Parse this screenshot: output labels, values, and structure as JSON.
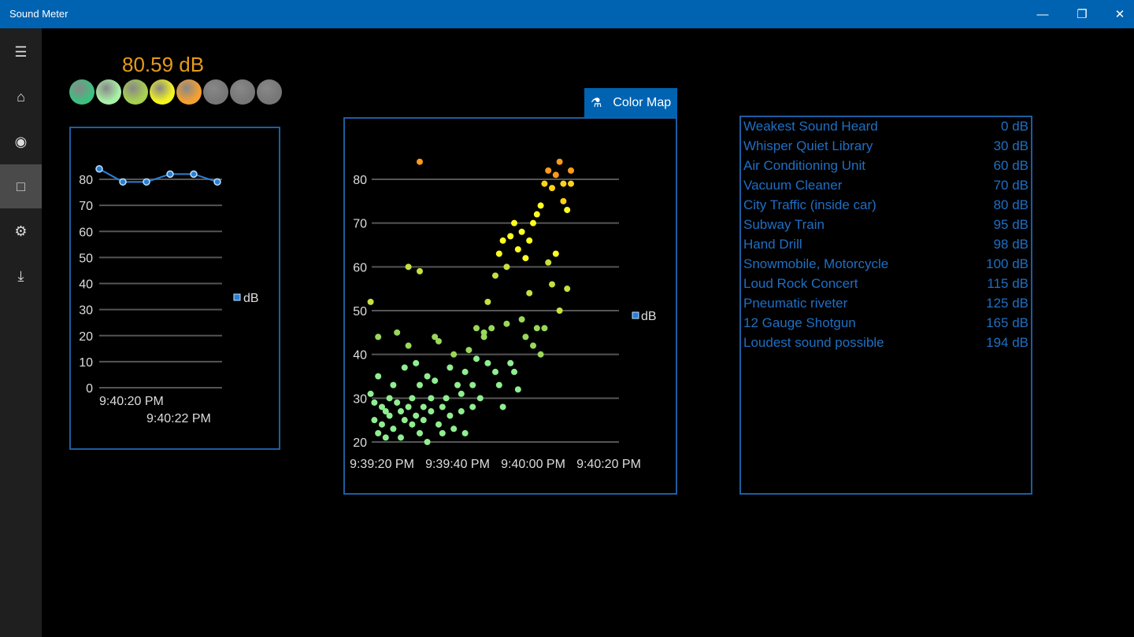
{
  "app": {
    "title": "Sound Meter"
  },
  "window": {
    "minimize": "—",
    "restore": "❐",
    "close": "✕"
  },
  "sidebar": [
    {
      "name": "menu-icon",
      "g": "☰"
    },
    {
      "name": "home-icon",
      "g": "⌂"
    },
    {
      "name": "record-icon",
      "g": "◉"
    },
    {
      "name": "stop-icon",
      "g": "□",
      "selected": true
    },
    {
      "name": "gear-icon",
      "g": "⚙"
    },
    {
      "name": "download-icon",
      "g": "⤓"
    }
  ],
  "meter": {
    "reading": "80.59 dB",
    "leds": [
      "#3fbf7f",
      "#a8f0a8",
      "#a8d050",
      "#f5f520",
      "#f5a030",
      "#777",
      "#777",
      "#777"
    ]
  },
  "colormap_button": "Color Map",
  "colors": {
    "accent": "#0063b1",
    "reading": "#e59b1a",
    "series": "#2a7fd4"
  },
  "chart_data": [
    {
      "type": "line",
      "legend": "dB",
      "ylim": [
        0,
        80
      ],
      "yticks": [
        0,
        10,
        20,
        30,
        40,
        50,
        60,
        70,
        80
      ],
      "xlabels": [
        "9:40:20 PM",
        "9:40:22 PM"
      ],
      "values": [
        84,
        79,
        79,
        82,
        82,
        79
      ]
    },
    {
      "type": "scatter",
      "legend": "dB",
      "ylim": [
        20,
        80
      ],
      "yticks": [
        20,
        30,
        40,
        50,
        60,
        70,
        80
      ],
      "xlabels": [
        "9:39:20 PM",
        "9:39:40 PM",
        "9:40:00 PM",
        "9:40:20 PM"
      ],
      "xlabel_seconds": [
        0,
        20,
        40,
        60
      ],
      "points": [
        [
          -3,
          52
        ],
        [
          -3,
          31
        ],
        [
          -2,
          29
        ],
        [
          -2,
          25
        ],
        [
          -1,
          44
        ],
        [
          -1,
          35
        ],
        [
          -1,
          22
        ],
        [
          0,
          28
        ],
        [
          0,
          24
        ],
        [
          1,
          27
        ],
        [
          1,
          21
        ],
        [
          2,
          30
        ],
        [
          2,
          26
        ],
        [
          3,
          33
        ],
        [
          3,
          23
        ],
        [
          4,
          45
        ],
        [
          4,
          29
        ],
        [
          5,
          27
        ],
        [
          5,
          21
        ],
        [
          6,
          37
        ],
        [
          6,
          25
        ],
        [
          7,
          60
        ],
        [
          7,
          42
        ],
        [
          7,
          28
        ],
        [
          8,
          30
        ],
        [
          8,
          24
        ],
        [
          9,
          38
        ],
        [
          9,
          26
        ],
        [
          10,
          84
        ],
        [
          10,
          59
        ],
        [
          10,
          33
        ],
        [
          10,
          22
        ],
        [
          11,
          28
        ],
        [
          11,
          25
        ],
        [
          12,
          35
        ],
        [
          12,
          20
        ],
        [
          13,
          30
        ],
        [
          13,
          27
        ],
        [
          14,
          44
        ],
        [
          14,
          34
        ],
        [
          15,
          43
        ],
        [
          15,
          24
        ],
        [
          16,
          28
        ],
        [
          16,
          22
        ],
        [
          17,
          30
        ],
        [
          18,
          37
        ],
        [
          18,
          26
        ],
        [
          19,
          40
        ],
        [
          19,
          23
        ],
        [
          20,
          33
        ],
        [
          21,
          31
        ],
        [
          21,
          27
        ],
        [
          22,
          36
        ],
        [
          22,
          22
        ],
        [
          23,
          41
        ],
        [
          24,
          33
        ],
        [
          24,
          28
        ],
        [
          25,
          46
        ],
        [
          25,
          39
        ],
        [
          26,
          30
        ],
        [
          27,
          45
        ],
        [
          27,
          44
        ],
        [
          28,
          52
        ],
        [
          28,
          38
        ],
        [
          29,
          46
        ],
        [
          30,
          58
        ],
        [
          30,
          36
        ],
        [
          31,
          63
        ],
        [
          31,
          33
        ],
        [
          32,
          66
        ],
        [
          32,
          28
        ],
        [
          33,
          60
        ],
        [
          33,
          47
        ],
        [
          34,
          67
        ],
        [
          34,
          38
        ],
        [
          35,
          70
        ],
        [
          35,
          36
        ],
        [
          36,
          64
        ],
        [
          36,
          32
        ],
        [
          37,
          68
        ],
        [
          37,
          48
        ],
        [
          38,
          62
        ],
        [
          38,
          44
        ],
        [
          39,
          66
        ],
        [
          39,
          54
        ],
        [
          40,
          70
        ],
        [
          40,
          42
        ],
        [
          41,
          72
        ],
        [
          41,
          46
        ],
        [
          42,
          74
        ],
        [
          42,
          40
        ],
        [
          43,
          79
        ],
        [
          43,
          46
        ],
        [
          44,
          82
        ],
        [
          44,
          61
        ],
        [
          45,
          78
        ],
        [
          45,
          56
        ],
        [
          46,
          81
        ],
        [
          46,
          63
        ],
        [
          47,
          84
        ],
        [
          47,
          50
        ],
        [
          48,
          79
        ],
        [
          48,
          75
        ],
        [
          49,
          73
        ],
        [
          49,
          55
        ],
        [
          50,
          82
        ],
        [
          50,
          79
        ]
      ]
    }
  ],
  "reference": {
    "rows": [
      [
        "Weakest Sound Heard",
        "0 dB"
      ],
      [
        "Whisper Quiet Library",
        "30 dB"
      ],
      [
        "Air Conditioning Unit",
        "60 dB"
      ],
      [
        "Vacuum Cleaner",
        "70 dB"
      ],
      [
        "City Traffic (inside car)",
        "80 dB"
      ],
      [
        "Subway Train",
        "95 dB"
      ],
      [
        "Hand Drill",
        "98 dB"
      ],
      [
        "Snowmobile, Motorcycle",
        "100 dB"
      ],
      [
        "Loud Rock Concert",
        "115 dB"
      ],
      [
        "Pneumatic riveter",
        "125 dB"
      ],
      [
        "12 Gauge Shotgun",
        "165 dB"
      ],
      [
        "Loudest sound possible",
        "194 dB"
      ]
    ]
  }
}
